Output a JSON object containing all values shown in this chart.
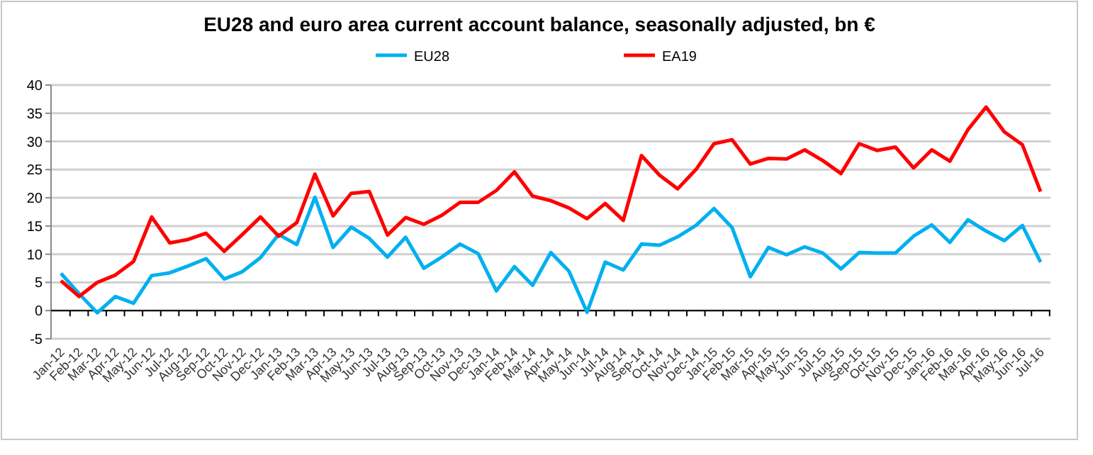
{
  "chart_data": {
    "type": "line",
    "title": "EU28 and euro area current account balance, seasonally adjusted, bn €",
    "categories": [
      "Jan-12",
      "Feb-12",
      "Mar-12",
      "Apr-12",
      "May-12",
      "Jun-12",
      "Jul-12",
      "Aug-12",
      "Sep-12",
      "Oct-12",
      "Nov-12",
      "Dec-12",
      "Jan-13",
      "Feb-13",
      "Mar-13",
      "Apr-13",
      "May-13",
      "Jun-13",
      "Jul-13",
      "Aug-13",
      "Sep-13",
      "Oct-13",
      "Nov-13",
      "Dec-13",
      "Jan-14",
      "Feb-14",
      "Mar-14",
      "Apr-14",
      "May-14",
      "Jun-14",
      "Jul-14",
      "Aug-14",
      "Sep-14",
      "Oct-14",
      "Nov-14",
      "Dec-14",
      "Jan-15",
      "Feb-15",
      "Mar-15",
      "Apr-15",
      "May-15",
      "Jun-15",
      "Jul-15",
      "Aug-15",
      "Sep-15",
      "Oct-15",
      "Nov-15",
      "Dec-15",
      "Jan-16",
      "Feb-16",
      "Mar-16",
      "Apr-16",
      "May-16",
      "Jun-16",
      "Jul-16"
    ],
    "series": [
      {
        "name": "EU28",
        "color": "#00b0f0",
        "values": [
          6.6,
          3.0,
          -0.4,
          2.5,
          1.3,
          6.2,
          6.7,
          7.9,
          9.2,
          5.6,
          6.9,
          9.4,
          13.5,
          11.7,
          20.1,
          11.2,
          14.8,
          12.8,
          9.5,
          13.0,
          7.5,
          9.5,
          11.8,
          10.1,
          3.5,
          7.8,
          4.5,
          10.3,
          7.0,
          -0.3,
          8.6,
          7.2,
          11.8,
          11.6,
          13.1,
          15.1,
          18.1,
          14.7,
          6.0,
          11.2,
          9.9,
          11.3,
          10.2,
          7.4,
          10.3,
          10.2,
          10.2,
          13.2,
          15.2,
          12.1,
          16.1,
          14.1,
          12.4,
          15.1,
          8.6
        ]
      },
      {
        "name": "EA19",
        "color": "#ff0000",
        "values": [
          5.3,
          2.5,
          5.0,
          6.3,
          8.7,
          16.6,
          12.0,
          12.6,
          13.7,
          10.5,
          13.5,
          16.6,
          13.2,
          15.6,
          24.2,
          16.8,
          20.8,
          21.1,
          13.4,
          16.5,
          15.3,
          16.9,
          19.2,
          19.2,
          21.3,
          24.6,
          20.3,
          19.5,
          18.2,
          16.3,
          19.0,
          16.0,
          27.5,
          24.0,
          21.6,
          25.0,
          29.6,
          30.3,
          26.0,
          27.0,
          26.9,
          28.5,
          26.6,
          24.3,
          29.6,
          28.4,
          29.0,
          25.3,
          28.5,
          26.5,
          32.1,
          36.1,
          31.7,
          29.4,
          21.1
        ]
      }
    ],
    "ylim": [
      -5,
      40
    ],
    "yticks": [
      -5,
      0,
      5,
      10,
      15,
      20,
      25,
      30,
      35,
      40
    ],
    "grid": "y",
    "legend": "top",
    "marker": "none",
    "line_style": "solid"
  }
}
